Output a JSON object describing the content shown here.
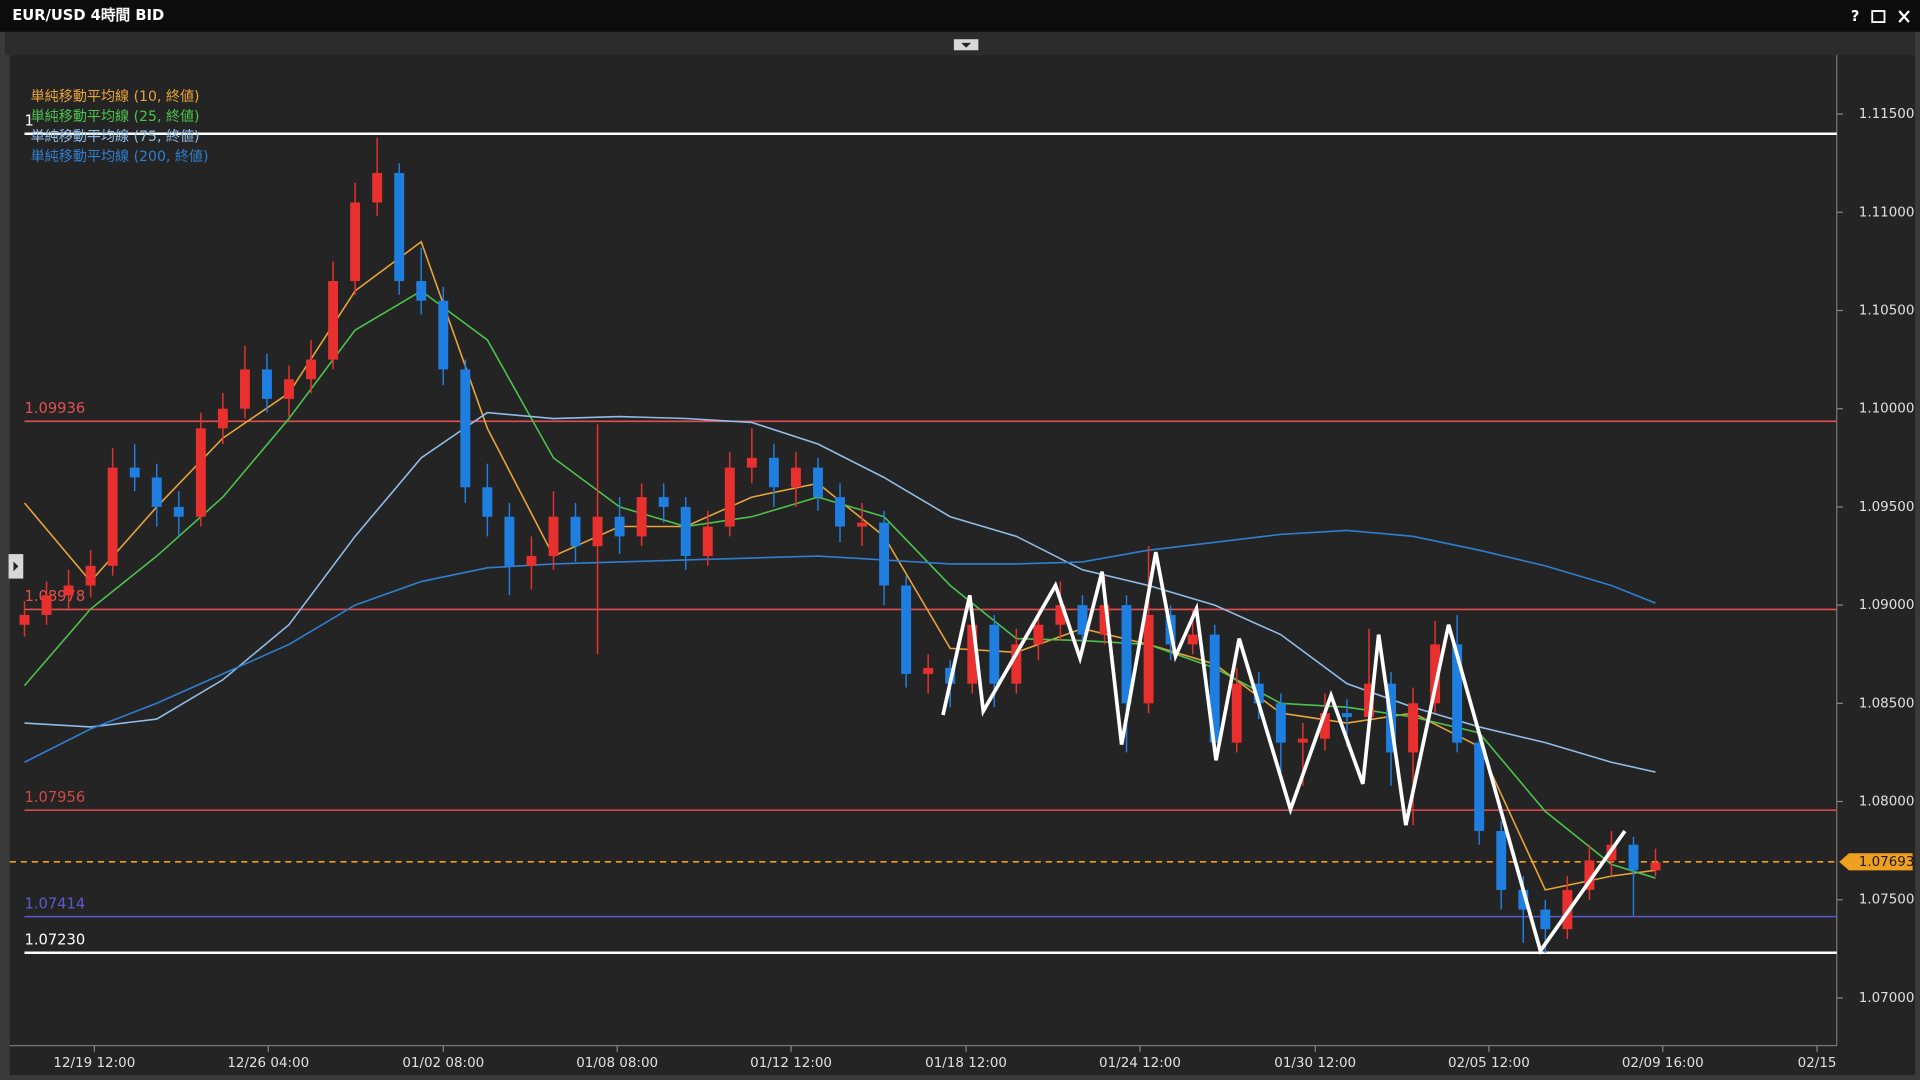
{
  "window": {
    "title": "EUR/USD 4時間 BID",
    "help": "?"
  },
  "chart_data": {
    "type": "candlestick",
    "up_color": "#e8312f",
    "down_color": "#1f7fe0",
    "candles": [
      [
        1.089,
        1.0902,
        1.0884,
        1.0895
      ],
      [
        1.0895,
        1.0912,
        1.089,
        1.0905
      ],
      [
        1.0905,
        1.0918,
        1.0898,
        1.091
      ],
      [
        1.091,
        1.0928,
        1.0904,
        1.092
      ],
      [
        1.092,
        1.098,
        1.0915,
        1.097
      ],
      [
        1.097,
        1.0982,
        1.0958,
        1.0965
      ],
      [
        1.0965,
        1.0972,
        1.094,
        1.095
      ],
      [
        1.095,
        1.0958,
        1.0935,
        1.0945
      ],
      [
        1.0945,
        1.0998,
        1.094,
        1.099
      ],
      [
        1.099,
        1.1008,
        1.0982,
        1.1
      ],
      [
        1.1,
        1.1032,
        1.0995,
        1.102
      ],
      [
        1.102,
        1.1028,
        1.0998,
        1.1005
      ],
      [
        1.1005,
        1.1022,
        1.0996,
        1.1015
      ],
      [
        1.1015,
        1.1035,
        1.1008,
        1.1025
      ],
      [
        1.1025,
        1.1075,
        1.102,
        1.1065
      ],
      [
        1.1065,
        1.1115,
        1.1058,
        1.1105
      ],
      [
        1.1105,
        1.1138,
        1.1098,
        1.112
      ],
      [
        1.112,
        1.1125,
        1.1058,
        1.1065
      ],
      [
        1.1065,
        1.1082,
        1.1048,
        1.1055
      ],
      [
        1.1055,
        1.1062,
        1.1012,
        1.102
      ],
      [
        1.102,
        1.1025,
        1.0952,
        1.096
      ],
      [
        1.096,
        1.0972,
        1.0935,
        1.0945
      ],
      [
        1.0945,
        1.0952,
        1.0905,
        1.092
      ],
      [
        1.092,
        1.0935,
        1.0908,
        1.0925
      ],
      [
        1.0925,
        1.0958,
        1.0918,
        1.0945
      ],
      [
        1.0945,
        1.0952,
        1.0922,
        1.093
      ],
      [
        1.093,
        1.0992,
        1.0875,
        1.0945
      ],
      [
        1.0945,
        1.0955,
        1.0926,
        1.0935
      ],
      [
        1.0935,
        1.0962,
        1.093,
        1.0955
      ],
      [
        1.0955,
        1.0962,
        1.0942,
        1.095
      ],
      [
        1.095,
        1.0955,
        1.0918,
        1.0925
      ],
      [
        1.0925,
        1.0948,
        1.092,
        1.094
      ],
      [
        1.094,
        1.0978,
        1.0935,
        1.097
      ],
      [
        1.097,
        1.099,
        1.0962,
        1.0975
      ],
      [
        1.0975,
        1.0982,
        1.095,
        1.096
      ],
      [
        1.096,
        1.0978,
        1.095,
        1.097
      ],
      [
        1.097,
        1.0975,
        1.0948,
        1.0955
      ],
      [
        1.0955,
        1.0962,
        1.0932,
        1.094
      ],
      [
        1.094,
        1.0952,
        1.093,
        1.0942
      ],
      [
        1.0942,
        1.0948,
        1.09,
        1.091
      ],
      [
        1.091,
        1.0915,
        1.0858,
        1.0865
      ],
      [
        1.0865,
        1.0875,
        1.0855,
        1.0868
      ],
      [
        1.0868,
        1.0872,
        1.0848,
        1.086
      ],
      [
        1.086,
        1.0898,
        1.0855,
        1.089
      ],
      [
        1.089,
        1.0895,
        1.0848,
        1.086
      ],
      [
        1.086,
        1.0888,
        1.0855,
        1.088
      ],
      [
        1.088,
        1.0898,
        1.0872,
        1.089
      ],
      [
        1.089,
        1.0912,
        1.0882,
        1.09
      ],
      [
        1.09,
        1.0905,
        1.0875,
        1.0885
      ],
      [
        1.0885,
        1.0915,
        1.088,
        1.09
      ],
      [
        1.09,
        1.0905,
        1.0825,
        1.085
      ],
      [
        1.085,
        1.093,
        1.0845,
        1.0895
      ],
      [
        1.0895,
        1.09,
        1.0872,
        1.088
      ],
      [
        1.088,
        1.0898,
        1.0875,
        1.0885
      ],
      [
        1.0885,
        1.089,
        1.0822,
        1.083
      ],
      [
        1.083,
        1.0868,
        1.0825,
        1.086
      ],
      [
        1.086,
        1.0866,
        1.0842,
        1.085
      ],
      [
        1.085,
        1.0855,
        1.0815,
        1.083
      ],
      [
        1.083,
        1.084,
        1.0808,
        1.0832
      ],
      [
        1.0832,
        1.0855,
        1.0826,
        1.0845
      ],
      [
        1.0845,
        1.0852,
        1.0828,
        1.0843
      ],
      [
        1.0843,
        1.0888,
        1.0838,
        1.086
      ],
      [
        1.086,
        1.0866,
        1.0808,
        1.0825
      ],
      [
        1.0825,
        1.0858,
        1.0788,
        1.085
      ],
      [
        1.085,
        1.0892,
        1.0845,
        1.088
      ],
      [
        1.088,
        1.0895,
        1.0825,
        1.083
      ],
      [
        1.083,
        1.0835,
        1.0778,
        1.0785
      ],
      [
        1.0785,
        1.079,
        1.0745,
        1.0755
      ],
      [
        1.0755,
        1.0762,
        1.0728,
        1.0745
      ],
      [
        1.0745,
        1.075,
        1.0723,
        1.0735
      ],
      [
        1.0735,
        1.0762,
        1.073,
        1.0755
      ],
      [
        1.0755,
        1.0778,
        1.075,
        1.077
      ],
      [
        1.077,
        1.0785,
        1.0762,
        1.0778
      ],
      [
        1.0778,
        1.0782,
        1.0742,
        1.0765
      ],
      [
        1.0765,
        1.0776,
        1.0762,
        1.0769
      ]
    ],
    "series": [
      {
        "name": "単純移動平均線 (10, 終値)",
        "color": "#e8a33a",
        "x": [
          0,
          3,
          6,
          9,
          12,
          15,
          18,
          21,
          24,
          27,
          30,
          33,
          36,
          39,
          42,
          45,
          48,
          51,
          54,
          57,
          60,
          63,
          66,
          69,
          72,
          74
        ],
        "values": [
          1.0952,
          1.0912,
          1.095,
          1.0985,
          1.1008,
          1.106,
          1.1085,
          1.099,
          1.0925,
          1.094,
          1.094,
          1.0955,
          1.0962,
          1.0935,
          1.0878,
          1.0876,
          1.0888,
          1.088,
          1.087,
          1.0845,
          1.084,
          1.0845,
          1.0828,
          1.0755,
          1.0762,
          1.0765
        ]
      },
      {
        "name": "単純移動平均線 (25, 終値)",
        "color": "#4cc24c",
        "x": [
          0,
          3,
          6,
          9,
          12,
          15,
          18,
          21,
          24,
          27,
          30,
          33,
          36,
          39,
          42,
          45,
          48,
          51,
          54,
          57,
          60,
          63,
          66,
          69,
          72,
          74
        ],
        "values": [
          1.0859,
          1.0898,
          1.0925,
          1.0955,
          1.0995,
          1.104,
          1.106,
          1.1035,
          1.0975,
          1.095,
          1.094,
          1.0945,
          1.0955,
          1.0945,
          1.091,
          1.0883,
          1.0882,
          1.088,
          1.0868,
          1.085,
          1.0848,
          1.0843,
          1.0835,
          1.0795,
          1.0768,
          1.0761
        ]
      },
      {
        "name": "単純移動平均線 (75, 終値)",
        "color": "#8fbde8",
        "x": [
          0,
          3,
          6,
          9,
          12,
          15,
          18,
          21,
          24,
          27,
          30,
          33,
          36,
          39,
          42,
          45,
          48,
          51,
          54,
          57,
          60,
          63,
          66,
          69,
          72,
          74
        ],
        "values": [
          1.084,
          1.0838,
          1.0842,
          1.0862,
          1.089,
          1.0935,
          1.0975,
          1.0998,
          1.0995,
          1.0996,
          1.0995,
          1.0993,
          1.0982,
          1.0965,
          1.0945,
          1.0935,
          1.0918,
          1.091,
          1.09,
          1.0885,
          1.086,
          1.0848,
          1.0838,
          1.083,
          1.082,
          1.0815
        ]
      },
      {
        "name": "単純移動平均線 (200, 終値)",
        "color": "#2f7fd0",
        "x": [
          0,
          3,
          6,
          9,
          12,
          15,
          18,
          21,
          24,
          27,
          30,
          33,
          36,
          39,
          42,
          45,
          48,
          51,
          54,
          57,
          60,
          63,
          66,
          69,
          72,
          74
        ],
        "values": [
          1.082,
          1.0837,
          1.085,
          1.0865,
          1.088,
          1.09,
          1.0912,
          1.0919,
          1.0921,
          1.0922,
          1.0923,
          1.0924,
          1.0925,
          1.0923,
          1.0921,
          1.0921,
          1.0922,
          1.0928,
          1.0932,
          1.0936,
          1.0938,
          1.0935,
          1.0928,
          1.092,
          1.091,
          1.0901
        ]
      }
    ],
    "levels": [
      {
        "value": 1.114,
        "label": "1",
        "color": "#ffffff"
      },
      {
        "value": 1.09936,
        "label": "1.09936",
        "color": "#e05050"
      },
      {
        "value": 1.08978,
        "label": "1.08978",
        "color": "#e05050"
      },
      {
        "value": 1.07956,
        "label": "1.07956",
        "color": "#d04848"
      },
      {
        "value": 1.07414,
        "label": "1.07414",
        "color": "#5a5ad0"
      },
      {
        "value": 1.0723,
        "label": "1.07230",
        "color": "#ffffff"
      }
    ],
    "current_price": {
      "value": 1.07693,
      "label": "1.07693",
      "color": "#f0a020"
    },
    "drawing": {
      "color": "#ffffff",
      "x": [
        41.67,
        42.89,
        43.5,
        46.78,
        47.89,
        48.89,
        49.78,
        51.33,
        52.22,
        53.17,
        54.06,
        55.11,
        57.44,
        59.28,
        60.72,
        61.44,
        62.67,
        64.61,
        68.78,
        72.61
      ],
      "values": [
        1.0844,
        1.0905,
        1.0846,
        1.091,
        1.0873,
        1.0917,
        1.0829,
        1.0927,
        1.0874,
        1.0898,
        1.0821,
        1.0883,
        1.0796,
        1.0854,
        1.0809,
        1.0885,
        1.0788,
        1.089,
        1.0724,
        1.0785
      ]
    },
    "xlim": [
      -0.667,
      82.222
    ],
    "xticks": [
      {
        "value": 3.17,
        "label": "12/19 12:00"
      },
      {
        "value": 11.06,
        "label": "12/26 04:00"
      },
      {
        "value": 19,
        "label": "01/02 08:00"
      },
      {
        "value": 26.89,
        "label": "01/08 08:00"
      },
      {
        "value": 34.78,
        "label": "01/12 12:00"
      },
      {
        "value": 42.72,
        "label": "01/18 12:00"
      },
      {
        "value": 50.61,
        "label": "01/24 12:00"
      },
      {
        "value": 58.56,
        "label": "01/30 12:00"
      },
      {
        "value": 66.44,
        "label": "02/05 12:00"
      },
      {
        "value": 74.33,
        "label": "02/09 16:00"
      },
      {
        "value": 81.33,
        "label": "02/15"
      }
    ],
    "ylim": [
      1.06757,
      1.118
    ],
    "yticks": [
      {
        "value": 1.07,
        "label": "1.07000"
      },
      {
        "value": 1.075,
        "label": "1.07500"
      },
      {
        "value": 1.08,
        "label": "1.08000"
      },
      {
        "value": 1.085,
        "label": "1.08500"
      },
      {
        "value": 1.09,
        "label": "1.09000"
      },
      {
        "value": 1.095,
        "label": "1.09500"
      },
      {
        "value": 1.1,
        "label": "1.10000"
      },
      {
        "value": 1.105,
        "label": "1.10500"
      },
      {
        "value": 1.11,
        "label": "1.11000"
      },
      {
        "value": 1.115,
        "label": "1.11500"
      }
    ]
  }
}
